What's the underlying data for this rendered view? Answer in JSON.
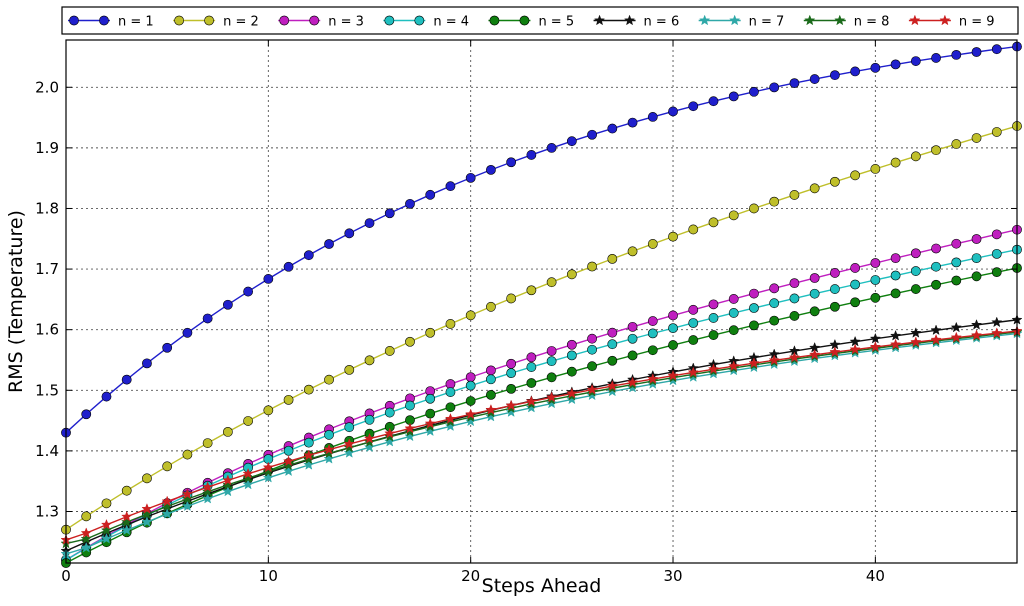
{
  "chart_data": {
    "type": "line",
    "xlabel": "Steps Ahead",
    "ylabel": "RMS (Temperature)",
    "xlim": [
      0,
      47
    ],
    "ylim": [
      1.215,
      2.078
    ],
    "xticks": [
      0,
      10,
      20,
      30,
      40
    ],
    "yticks": [
      1.3,
      1.4,
      1.5,
      1.6,
      1.7,
      1.8,
      1.9,
      2.0
    ],
    "grid": true,
    "legend_position": "top",
    "series": [
      {
        "name": "n = 1",
        "color": "#1f1fcc",
        "marker": "circle",
        "params": {
          "a": 1.43,
          "b": 2.17,
          "k": 0.042,
          "c": 0,
          "e": 0
        }
      },
      {
        "name": "n = 2",
        "color": "#bfbf2a",
        "marker": "circle",
        "params": {
          "a": 1.27,
          "b": 1.64,
          "k": 0.04,
          "c": 0.0075,
          "e": 0
        }
      },
      {
        "name": "n = 3",
        "color": "#bf1fbf",
        "marker": "circle",
        "params": {
          "a": 1.22,
          "b": 1.48,
          "k": 0.054,
          "c": 0.0065,
          "e": 0
        }
      },
      {
        "name": "n = 4",
        "color": "#1fbfbf",
        "marker": "circle",
        "params": {
          "a": 1.22,
          "b": 1.48,
          "k": 0.054,
          "c": 0.0058,
          "e": 0
        }
      },
      {
        "name": "n = 5",
        "color": "#0f7f0f",
        "marker": "circle",
        "params": {
          "a": 1.215,
          "b": 1.47,
          "k": 0.048,
          "c": 0.0055,
          "e": 0
        }
      },
      {
        "name": "n = 6",
        "color": "#111111",
        "marker": "star",
        "params": {
          "a": 1.235,
          "b": 1.62,
          "k": 0.035,
          "c": 0.0015,
          "e": 0
        }
      },
      {
        "name": "n = 7",
        "color": "#2fa8a8",
        "marker": "star",
        "params": {
          "a": 1.225,
          "b": 1.6,
          "k": 0.038,
          "c": 0.0012,
          "e": 0.005
        }
      },
      {
        "name": "n = 8",
        "color": "#1a6a1a",
        "marker": "star",
        "params": {
          "a": 1.24,
          "b": 1.6,
          "k": 0.038,
          "c": 0.0012,
          "e": 0.007
        }
      },
      {
        "name": "n = 9",
        "color": "#cc2020",
        "marker": "star",
        "params": {
          "a": 1.25,
          "b": 1.6,
          "k": 0.038,
          "c": 0.0012,
          "e": 0.003
        }
      }
    ]
  }
}
